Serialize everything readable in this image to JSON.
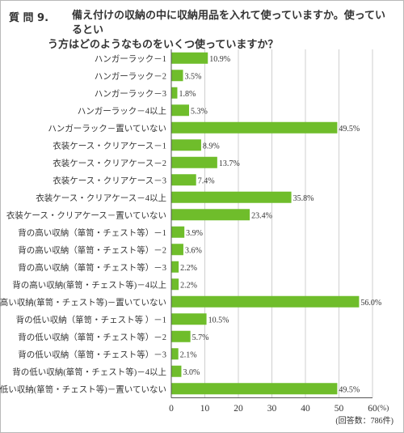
{
  "question": {
    "prefix": "質 問 9.",
    "line1": "備え付けの収納の中に収納用品を入れて使っていますか。使っているとい",
    "line2": "う方はどのようなものをいくつ使っていますか？"
  },
  "chart_data": {
    "type": "bar",
    "orientation": "horizontal",
    "categories": [
      "ハンガーラック－1",
      "ハンガーラック－2",
      "ハンガーラック－3",
      "ハンガーラック－4以上",
      "ハンガーラック－置いていない",
      "衣装ケース・クリアケース－1",
      "衣装ケース・クリアケース－2",
      "衣装ケース・クリアケース－3",
      "衣装ケース・クリアケース－4以上",
      "衣装ケース・クリアケース－置いていない",
      "背の高い収納（箪笥・チェスト等）－1",
      "背の高い収納（箪笥・チェスト等）－2",
      "背の高い収納（箪笥・チェスト等）－3",
      "背の高い収納(箪笥・チェスト等)－4以上",
      "背の高い収納(箪笥・チェスト等)－置いていない",
      "背の低い収納（箪笥・チェスト等 ）－1",
      "背の低い収納（箪笥・チェスト等）－2",
      "背の低い収納（箪笥・チェスト等）－3",
      "背の低い収納(箪笥・チェスト等)－4以上",
      "背の低い収納(箪笥・チェスト等)－置いていない"
    ],
    "values": [
      10.9,
      3.5,
      1.8,
      5.3,
      49.5,
      8.9,
      13.7,
      7.4,
      35.8,
      23.4,
      3.9,
      3.6,
      2.2,
      2.2,
      56.0,
      10.5,
      5.7,
      2.1,
      3.0,
      49.5
    ],
    "value_labels": [
      "10.9%",
      "3.5%",
      "1.8%",
      "5.3%",
      "49.5%",
      "8.9%",
      "13.7%",
      "7.4%",
      "35.8%",
      "23.4%",
      "3.9%",
      "3.6%",
      "2.2%",
      "2.2%",
      "56.0%",
      "10.5%",
      "5.7%",
      "2.1%",
      "3.0%",
      "49.5%"
    ],
    "xlim": [
      0,
      60
    ],
    "xticks": [
      0,
      10,
      20,
      30,
      40,
      50,
      60
    ],
    "xtick_labels": [
      "0",
      "10",
      "20",
      "30",
      "40",
      "50",
      "60"
    ],
    "x_unit": "(%)",
    "note": "(回答数：786件)",
    "grid": true,
    "bar_color": "#6fbd2b"
  }
}
